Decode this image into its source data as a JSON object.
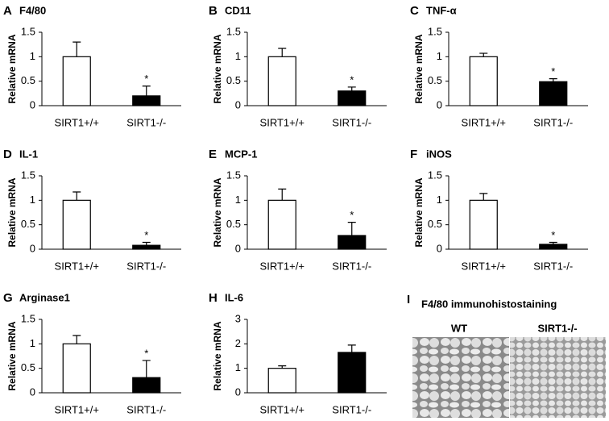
{
  "chart_data": [
    {
      "type": "bar",
      "panel": "A",
      "title": "F4/80",
      "y_label": "Relative mRNA",
      "categories": [
        "SIRT1+/+",
        "SIRT1-/-"
      ],
      "values": [
        1,
        0.2
      ],
      "errors": [
        0.3,
        0.2
      ],
      "significance": [
        null,
        "*"
      ],
      "colors": [
        "#ffffff",
        "#000000"
      ],
      "ylim": [
        0,
        1.5
      ],
      "yticks": [
        0,
        0.5,
        1,
        1.5
      ]
    },
    {
      "type": "bar",
      "panel": "B",
      "title": "CD11",
      "y_label": "Relative mRNA",
      "categories": [
        "SIRT1+/+",
        "SIRT1-/-"
      ],
      "values": [
        1,
        0.3
      ],
      "errors": [
        0.17,
        0.08
      ],
      "significance": [
        null,
        "*"
      ],
      "colors": [
        "#ffffff",
        "#000000"
      ],
      "ylim": [
        0,
        1.5
      ],
      "yticks": [
        0,
        0.5,
        1,
        1.5
      ]
    },
    {
      "type": "bar",
      "panel": "C",
      "title": "TNF-α",
      "y_label": "Relative mRNA",
      "categories": [
        "SIRT1+/+",
        "SIRT1-/-"
      ],
      "values": [
        1,
        0.49
      ],
      "errors": [
        0.07,
        0.06
      ],
      "significance": [
        null,
        "*"
      ],
      "colors": [
        "#ffffff",
        "#000000"
      ],
      "ylim": [
        0,
        1.5
      ],
      "yticks": [
        0,
        0.5,
        1,
        1.5
      ]
    },
    {
      "type": "bar",
      "panel": "D",
      "title": "IL-1",
      "y_label": "Relative mRNA",
      "categories": [
        "SIRT1+/+",
        "SIRT1-/-"
      ],
      "values": [
        1,
        0.08
      ],
      "errors": [
        0.17,
        0.06
      ],
      "significance": [
        null,
        "*"
      ],
      "colors": [
        "#ffffff",
        "#000000"
      ],
      "ylim": [
        0,
        1.5
      ],
      "yticks": [
        0,
        0.5,
        1,
        1.5
      ]
    },
    {
      "type": "bar",
      "panel": "E",
      "title": "MCP-1",
      "y_label": "Relative mRNA",
      "categories": [
        "SIRT1+/+",
        "SIRT1-/-"
      ],
      "values": [
        1,
        0.28
      ],
      "errors": [
        0.23,
        0.27
      ],
      "significance": [
        null,
        "*"
      ],
      "colors": [
        "#ffffff",
        "#000000"
      ],
      "ylim": [
        0,
        1.5
      ],
      "yticks": [
        0,
        0.5,
        1,
        1.5
      ]
    },
    {
      "type": "bar",
      "panel": "F",
      "title": "iNOS",
      "y_label": "Relative mRNA",
      "categories": [
        "SIRT1+/+",
        "SIRT1-/-"
      ],
      "values": [
        1,
        0.1
      ],
      "errors": [
        0.14,
        0.04
      ],
      "significance": [
        null,
        "*"
      ],
      "colors": [
        "#ffffff",
        "#000000"
      ],
      "ylim": [
        0,
        1.5
      ],
      "yticks": [
        0,
        0.5,
        1,
        1.5
      ]
    },
    {
      "type": "bar",
      "panel": "G",
      "title": "Arginase1",
      "y_label": "Relative mRNA",
      "categories": [
        "SIRT1+/+",
        "SIRT1-/-"
      ],
      "values": [
        1,
        0.31
      ],
      "errors": [
        0.17,
        0.35
      ],
      "significance": [
        null,
        "*"
      ],
      "colors": [
        "#ffffff",
        "#000000"
      ],
      "ylim": [
        0,
        1.5
      ],
      "yticks": [
        0,
        0.5,
        1,
        1.5
      ]
    },
    {
      "type": "bar",
      "panel": "H",
      "title": "IL-6",
      "y_label": "Relative mRNA",
      "categories": [
        "SIRT1+/+",
        "SIRT1-/-"
      ],
      "values": [
        1,
        1.65
      ],
      "errors": [
        0.1,
        0.3
      ],
      "significance": [
        null,
        null
      ],
      "colors": [
        "#ffffff",
        "#000000"
      ],
      "ylim": [
        0,
        3
      ],
      "yticks": [
        0,
        1,
        2,
        3
      ]
    }
  ],
  "image_panel": {
    "panel": "I",
    "title": "F4/80 immunohistostaining",
    "labels": [
      "WT",
      "SIRT1-/-"
    ]
  }
}
